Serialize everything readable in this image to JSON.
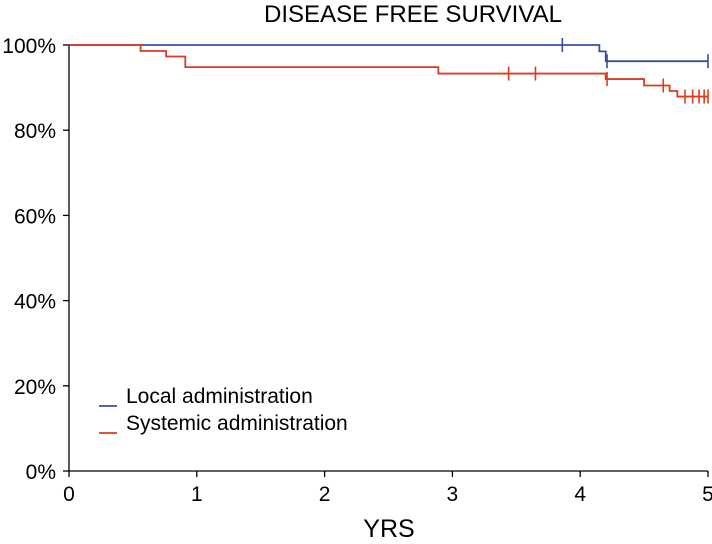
{
  "chart_data": {
    "type": "line",
    "title": "DISEASE FREE SURVIVAL",
    "xlabel": "YRS",
    "ylabel": "",
    "xlim": [
      0,
      5
    ],
    "ylim": [
      0,
      100
    ],
    "x_ticks": [
      "0",
      "1",
      "2",
      "3",
      "4",
      "5"
    ],
    "y_ticks": [
      "0%",
      "20%",
      "40%",
      "60%",
      "80%",
      "100%"
    ],
    "grid": false,
    "legend_position": "bottom-left",
    "series": [
      {
        "name": "Local administration",
        "color": "#3a4ea0",
        "step_points": [
          [
            0,
            100
          ],
          [
            4.15,
            98.5
          ],
          [
            4.2,
            96.2
          ],
          [
            5,
            96.2
          ]
        ],
        "censor_marks": [
          [
            3.86,
            100
          ],
          [
            4.21,
            96.2
          ],
          [
            5.0,
            96.2
          ]
        ]
      },
      {
        "name": "Systemic administration",
        "color": "#e03a1e",
        "step_points": [
          [
            0,
            100
          ],
          [
            0.56,
            98.6
          ],
          [
            0.76,
            97.3
          ],
          [
            0.91,
            94.8
          ],
          [
            2.89,
            93.3
          ],
          [
            4.2,
            92.0
          ],
          [
            4.5,
            90.5
          ],
          [
            4.7,
            89.2
          ],
          [
            4.76,
            87.9
          ],
          [
            5,
            87.9
          ]
        ],
        "censor_marks": [
          [
            3.44,
            93.3
          ],
          [
            3.65,
            93.3
          ],
          [
            4.21,
            92.0
          ],
          [
            4.65,
            90.5
          ],
          [
            4.82,
            87.9
          ],
          [
            4.88,
            87.9
          ],
          [
            4.93,
            87.9
          ],
          [
            4.97,
            87.9
          ],
          [
            5.0,
            87.9
          ]
        ]
      }
    ]
  }
}
